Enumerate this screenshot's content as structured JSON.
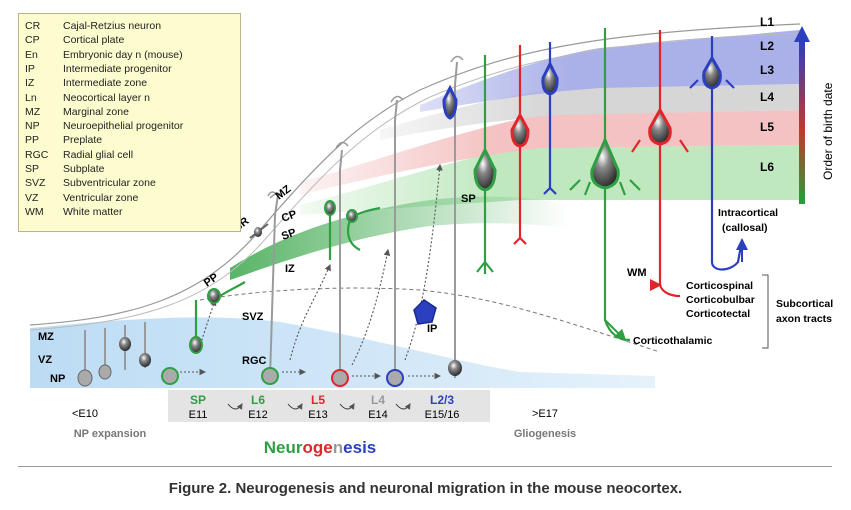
{
  "legend": [
    {
      "abbr": "CR",
      "text": "Cajal-Retzius neuron"
    },
    {
      "abbr": "CP",
      "text": "Cortical plate"
    },
    {
      "abbr": "En",
      "text": "Embryonic day n (mouse)"
    },
    {
      "abbr": "IP",
      "text": "Intermediate progenitor"
    },
    {
      "abbr": "IZ",
      "text": "Intermediate zone"
    },
    {
      "abbr": "Ln",
      "text": "Neocortical layer n"
    },
    {
      "abbr": "MZ",
      "text": "Marginal zone"
    },
    {
      "abbr": "NP",
      "text": "Neuroepithelial progenitor"
    },
    {
      "abbr": "PP",
      "text": "Preplate"
    },
    {
      "abbr": "RGC",
      "text": "Radial glial cell"
    },
    {
      "abbr": "SP",
      "text": "Subplate"
    },
    {
      "abbr": "SVZ",
      "text": "Subventricular zone"
    },
    {
      "abbr": "VZ",
      "text": "Ventricular zone"
    },
    {
      "abbr": "WM",
      "text": "White matter"
    }
  ],
  "layers": [
    "L1",
    "L2",
    "L3",
    "L4",
    "L5",
    "L6"
  ],
  "zones": {
    "mz_top": "MZ",
    "mz_left": "MZ",
    "cp": "CP",
    "sp": "SP",
    "sp_mature": "SP",
    "cr": "CR",
    "pp": "PP",
    "iz": "IZ",
    "svz": "SVZ",
    "vz": "VZ",
    "np": "NP",
    "rgc": "RGC",
    "ip": "IP",
    "wm": "WM"
  },
  "timeline": [
    {
      "layer": "SP",
      "day": "E11",
      "color": "#2ea043"
    },
    {
      "layer": "L6",
      "day": "E12",
      "color": "#2ea043"
    },
    {
      "layer": "L5",
      "day": "E13",
      "color": "#e0262b"
    },
    {
      "layer": "L4",
      "day": "E14",
      "color": "#9a9a9a"
    },
    {
      "layer": "L2/3",
      "day": "E15/16",
      "color": "#2b3fbf"
    }
  ],
  "early": {
    "day": "<E10",
    "phase": "NP expansion"
  },
  "late": {
    "day": ">E17",
    "phase": "Gliogenesis"
  },
  "neurogenesis_word": "Neurogenesis",
  "birth_axis_label": "Order of birth date",
  "tracts": {
    "intracortical_1": "Intracortical",
    "intracortical_2": "(callosal)",
    "corticospinal": "Corticospinal",
    "corticobulbar": "Corticobulbar",
    "corticotectal": "Corticotectal",
    "subcortical_1": "Subcortical",
    "subcortical_2": "axon tracts",
    "corticothalamic": "Corticothalamic"
  },
  "caption": "Figure 2. Neurogenesis and neuronal migration in the mouse neocortex.",
  "colors": {
    "green": "#2ea043",
    "red": "#e0262b",
    "blue": "#2b3fbf",
    "gray": "#9a9a9a",
    "legend_bg": "#fdfccf"
  }
}
